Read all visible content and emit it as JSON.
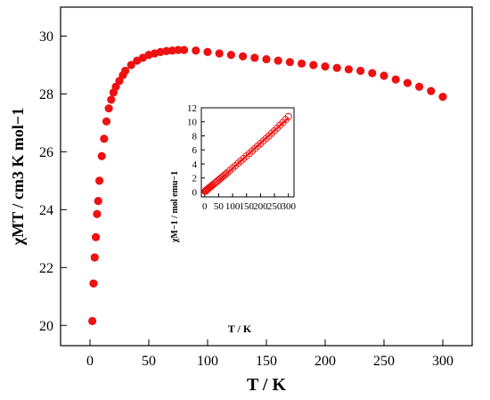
{
  "chart_data": [
    {
      "type": "scatter",
      "xlabel": "T / K",
      "ylabel": "χMT / cm3 K mol−1",
      "xlim": [
        -25,
        325
      ],
      "ylim": [
        19.3,
        31.0
      ],
      "xticks": [
        0,
        50,
        100,
        150,
        200,
        250,
        300
      ],
      "yticks": [
        20,
        22,
        24,
        26,
        28,
        30
      ],
      "grid": false,
      "marker": "filled-circle",
      "color": "#ee1111",
      "series": [
        {
          "x": [
            2,
            3,
            4,
            5,
            6,
            7,
            8,
            10,
            12,
            14,
            16,
            18,
            20,
            22,
            25,
            28,
            30,
            35,
            40,
            45,
            50,
            55,
            60,
            65,
            70,
            75,
            80,
            90,
            100,
            110,
            120,
            130,
            140,
            150,
            160,
            170,
            180,
            190,
            200,
            210,
            220,
            230,
            240,
            250,
            260,
            270,
            280,
            290,
            300
          ],
          "y": [
            20.15,
            21.45,
            22.35,
            23.05,
            23.85,
            24.3,
            25.0,
            25.85,
            26.45,
            27.05,
            27.5,
            27.8,
            28.05,
            28.25,
            28.45,
            28.65,
            28.8,
            29.0,
            29.15,
            29.25,
            29.35,
            29.4,
            29.45,
            29.48,
            29.5,
            29.52,
            29.52,
            29.5,
            29.45,
            29.4,
            29.35,
            29.3,
            29.25,
            29.2,
            29.15,
            29.1,
            29.05,
            29.0,
            28.95,
            28.9,
            28.85,
            28.8,
            28.72,
            28.63,
            28.5,
            28.38,
            28.25,
            28.1,
            27.9
          ]
        }
      ]
    },
    {
      "type": "scatter",
      "xlabel": "T / K",
      "ylabel": "χM−1 / mol emu−1",
      "xlim": [
        -12,
        320
      ],
      "ylim": [
        -0.7,
        12
      ],
      "xticks": [
        0,
        50,
        100,
        150,
        200,
        250,
        300
      ],
      "yticks": [
        0,
        2,
        4,
        6,
        8,
        10,
        12
      ],
      "grid": false,
      "marker": "open-circle",
      "color": "#ee1111",
      "fit_line": {
        "x": [
          50,
          300
        ],
        "y": [
          1.55,
          10.55
        ]
      },
      "series": [
        {
          "x": [
            2,
            3,
            4,
            5,
            6,
            7,
            8,
            10,
            12,
            14,
            16,
            18,
            20,
            22,
            25,
            28,
            30,
            35,
            40,
            45,
            50,
            55,
            60,
            65,
            70,
            75,
            80,
            90,
            100,
            110,
            120,
            130,
            140,
            150,
            160,
            170,
            180,
            190,
            200,
            210,
            220,
            230,
            240,
            250,
            260,
            270,
            280,
            290,
            300
          ],
          "y": [
            0.1,
            0.14,
            0.18,
            0.22,
            0.25,
            0.29,
            0.32,
            0.39,
            0.45,
            0.52,
            0.58,
            0.65,
            0.71,
            0.78,
            0.88,
            0.98,
            1.04,
            1.2,
            1.37,
            1.54,
            1.7,
            1.87,
            2.04,
            2.2,
            2.37,
            2.54,
            2.71,
            3.05,
            3.4,
            3.74,
            4.09,
            4.44,
            4.79,
            5.14,
            5.49,
            5.84,
            6.2,
            6.55,
            6.91,
            7.27,
            7.63,
            7.99,
            8.36,
            8.73,
            9.12,
            9.51,
            9.91,
            10.32,
            10.75
          ]
        }
      ]
    }
  ]
}
